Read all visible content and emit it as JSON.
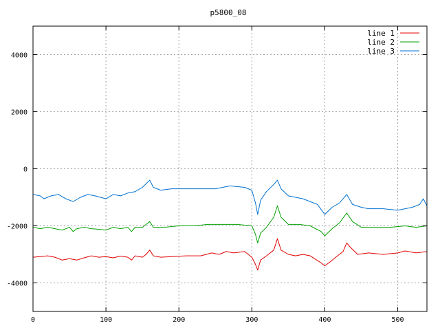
{
  "chart_data": {
    "type": "line",
    "title": "p5800_08",
    "xlabel": "",
    "ylabel": "",
    "xlim": [
      0,
      540
    ],
    "ylim": [
      -5000,
      5000
    ],
    "x_ticks": [
      0,
      100,
      200,
      300,
      400,
      500
    ],
    "y_ticks": [
      -4000,
      -2000,
      0,
      2000,
      4000
    ],
    "grid": true,
    "legend_position": "top-right",
    "series": [
      {
        "name": "line 1",
        "color": "#e00000",
        "points": [
          [
            0,
            -3100
          ],
          [
            10,
            -3080
          ],
          [
            20,
            -3050
          ],
          [
            30,
            -3100
          ],
          [
            40,
            -3200
          ],
          [
            50,
            -3150
          ],
          [
            60,
            -3200
          ],
          [
            70,
            -3120
          ],
          [
            80,
            -3050
          ],
          [
            90,
            -3100
          ],
          [
            100,
            -3080
          ],
          [
            110,
            -3120
          ],
          [
            120,
            -3060
          ],
          [
            130,
            -3100
          ],
          [
            135,
            -3200
          ],
          [
            140,
            -3050
          ],
          [
            150,
            -3100
          ],
          [
            155,
            -3000
          ],
          [
            160,
            -2850
          ],
          [
            165,
            -3050
          ],
          [
            175,
            -3100
          ],
          [
            190,
            -3080
          ],
          [
            210,
            -3050
          ],
          [
            230,
            -3050
          ],
          [
            245,
            -2950
          ],
          [
            255,
            -3000
          ],
          [
            265,
            -2900
          ],
          [
            275,
            -2950
          ],
          [
            290,
            -2900
          ],
          [
            300,
            -3100
          ],
          [
            305,
            -3350
          ],
          [
            308,
            -3550
          ],
          [
            312,
            -3200
          ],
          [
            320,
            -3050
          ],
          [
            330,
            -2850
          ],
          [
            335,
            -2450
          ],
          [
            340,
            -2850
          ],
          [
            350,
            -3000
          ],
          [
            360,
            -3050
          ],
          [
            370,
            -3000
          ],
          [
            380,
            -3050
          ],
          [
            395,
            -3300
          ],
          [
            400,
            -3400
          ],
          [
            408,
            -3250
          ],
          [
            415,
            -3100
          ],
          [
            425,
            -2900
          ],
          [
            430,
            -2600
          ],
          [
            435,
            -2750
          ],
          [
            445,
            -3000
          ],
          [
            460,
            -2950
          ],
          [
            480,
            -3000
          ],
          [
            500,
            -2950
          ],
          [
            510,
            -2880
          ],
          [
            525,
            -2950
          ],
          [
            540,
            -2900
          ]
        ]
      },
      {
        "name": "line 2",
        "color": "#00a000",
        "points": [
          [
            0,
            -2050
          ],
          [
            10,
            -2100
          ],
          [
            20,
            -2050
          ],
          [
            30,
            -2100
          ],
          [
            40,
            -2150
          ],
          [
            50,
            -2050
          ],
          [
            55,
            -2200
          ],
          [
            60,
            -2100
          ],
          [
            70,
            -2050
          ],
          [
            80,
            -2100
          ],
          [
            90,
            -2120
          ],
          [
            100,
            -2150
          ],
          [
            110,
            -2050
          ],
          [
            120,
            -2100
          ],
          [
            130,
            -2050
          ],
          [
            135,
            -2200
          ],
          [
            140,
            -2050
          ],
          [
            150,
            -2050
          ],
          [
            160,
            -1850
          ],
          [
            165,
            -2050
          ],
          [
            180,
            -2050
          ],
          [
            200,
            -2000
          ],
          [
            220,
            -2000
          ],
          [
            240,
            -1950
          ],
          [
            260,
            -1950
          ],
          [
            280,
            -1950
          ],
          [
            300,
            -2000
          ],
          [
            305,
            -2300
          ],
          [
            308,
            -2600
          ],
          [
            312,
            -2250
          ],
          [
            320,
            -2050
          ],
          [
            330,
            -1700
          ],
          [
            335,
            -1300
          ],
          [
            340,
            -1700
          ],
          [
            350,
            -1950
          ],
          [
            365,
            -1950
          ],
          [
            380,
            -2000
          ],
          [
            395,
            -2200
          ],
          [
            400,
            -2350
          ],
          [
            410,
            -2100
          ],
          [
            420,
            -1900
          ],
          [
            430,
            -1550
          ],
          [
            438,
            -1850
          ],
          [
            450,
            -2050
          ],
          [
            470,
            -2050
          ],
          [
            490,
            -2050
          ],
          [
            510,
            -2000
          ],
          [
            525,
            -2050
          ],
          [
            540,
            -2000
          ]
        ]
      },
      {
        "name": "line 3",
        "color": "#0070d0",
        "points": [
          [
            0,
            -900
          ],
          [
            10,
            -950
          ],
          [
            15,
            -1050
          ],
          [
            25,
            -950
          ],
          [
            35,
            -900
          ],
          [
            45,
            -1050
          ],
          [
            55,
            -1150
          ],
          [
            65,
            -1000
          ],
          [
            75,
            -900
          ],
          [
            85,
            -950
          ],
          [
            100,
            -1050
          ],
          [
            110,
            -900
          ],
          [
            120,
            -950
          ],
          [
            130,
            -850
          ],
          [
            140,
            -800
          ],
          [
            150,
            -650
          ],
          [
            160,
            -400
          ],
          [
            165,
            -650
          ],
          [
            175,
            -750
          ],
          [
            190,
            -700
          ],
          [
            210,
            -700
          ],
          [
            230,
            -700
          ],
          [
            250,
            -700
          ],
          [
            270,
            -600
          ],
          [
            290,
            -650
          ],
          [
            300,
            -750
          ],
          [
            305,
            -1200
          ],
          [
            308,
            -1600
          ],
          [
            312,
            -1100
          ],
          [
            320,
            -800
          ],
          [
            330,
            -550
          ],
          [
            335,
            -400
          ],
          [
            340,
            -700
          ],
          [
            350,
            -950
          ],
          [
            370,
            -1050
          ],
          [
            390,
            -1250
          ],
          [
            400,
            -1600
          ],
          [
            410,
            -1350
          ],
          [
            420,
            -1200
          ],
          [
            430,
            -900
          ],
          [
            438,
            -1250
          ],
          [
            450,
            -1350
          ],
          [
            460,
            -1400
          ],
          [
            480,
            -1400
          ],
          [
            500,
            -1450
          ],
          [
            520,
            -1350
          ],
          [
            530,
            -1250
          ],
          [
            535,
            -1050
          ],
          [
            540,
            -1300
          ]
        ]
      }
    ]
  }
}
